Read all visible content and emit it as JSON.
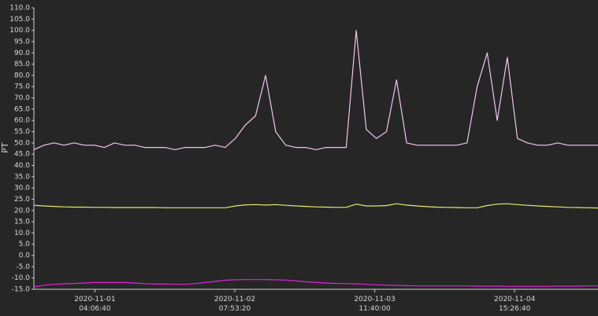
{
  "chart_data": {
    "type": "line",
    "y_label": "PT",
    "x": [
      "2020-10-31T16:00:00",
      "2020-10-31T18:00:00",
      "2020-10-31T20:00:00",
      "2020-10-31T22:00:00",
      "2020-11-01T00:00:00",
      "2020-11-01T02:00:00",
      "2020-11-01T04:00:00",
      "2020-11-01T06:00:00",
      "2020-11-01T08:00:00",
      "2020-11-01T10:00:00",
      "2020-11-01T12:00:00",
      "2020-11-01T14:00:00",
      "2020-11-01T16:00:00",
      "2020-11-01T18:00:00",
      "2020-11-01T20:00:00",
      "2020-11-01T22:00:00",
      "2020-11-02T00:00:00",
      "2020-11-02T02:00:00",
      "2020-11-02T04:00:00",
      "2020-11-02T06:00:00",
      "2020-11-02T08:00:00",
      "2020-11-02T10:00:00",
      "2020-11-02T12:00:00",
      "2020-11-02T14:00:00",
      "2020-11-02T16:00:00",
      "2020-11-02T18:00:00",
      "2020-11-02T20:00:00",
      "2020-11-02T22:00:00",
      "2020-11-03T00:00:00",
      "2020-11-03T02:00:00",
      "2020-11-03T04:00:00",
      "2020-11-03T06:00:00",
      "2020-11-03T08:00:00",
      "2020-11-03T10:00:00",
      "2020-11-03T12:00:00",
      "2020-11-03T14:00:00",
      "2020-11-03T16:00:00",
      "2020-11-03T18:00:00",
      "2020-11-03T20:00:00",
      "2020-11-03T22:00:00",
      "2020-11-04T00:00:00",
      "2020-11-04T02:00:00",
      "2020-11-04T04:00:00",
      "2020-11-04T06:00:00",
      "2020-11-04T08:00:00",
      "2020-11-04T10:00:00",
      "2020-11-04T12:00:00",
      "2020-11-04T14:00:00",
      "2020-11-04T16:00:00",
      "2020-11-04T18:00:00",
      "2020-11-04T20:00:00",
      "2020-11-04T22:00:00",
      "2020-11-05T00:00:00",
      "2020-11-05T02:00:00",
      "2020-11-05T04:00:00",
      "2020-11-05T06:00:00",
      "2020-11-05T08:00:00"
    ],
    "series": [
      {
        "color": "#f2c4ee",
        "values": [
          47,
          49,
          50,
          49,
          50,
          49,
          49,
          48,
          50,
          49,
          49,
          48,
          48,
          48,
          47,
          48,
          48,
          48,
          49,
          48,
          52,
          58,
          62,
          80,
          55,
          49,
          48,
          48,
          47,
          48,
          48,
          48,
          100,
          56,
          52,
          55,
          78,
          50,
          49,
          49,
          49,
          49,
          49,
          50,
          75,
          90,
          60,
          88,
          52,
          50,
          49,
          49,
          50,
          49,
          49,
          49,
          49
        ]
      },
      {
        "color": "#e2ea6c",
        "values": [
          22.3,
          22,
          21.8,
          21.6,
          21.5,
          21.5,
          21.4,
          21.4,
          21.3,
          21.3,
          21.3,
          21.3,
          21.3,
          21.2,
          21.2,
          21.2,
          21.2,
          21.2,
          21.2,
          21.2,
          22,
          22.5,
          22.6,
          22.4,
          22.6,
          22.3,
          22,
          21.8,
          21.6,
          21.5,
          21.4,
          21.4,
          22.8,
          22,
          22,
          22.2,
          23,
          22.4,
          22,
          21.7,
          21.5,
          21.4,
          21.3,
          21.2,
          21.2,
          22.2,
          22.8,
          23,
          22.6,
          22.3,
          22,
          21.8,
          21.6,
          21.4,
          21.3,
          21.2,
          21.1
        ]
      },
      {
        "color": "#e025d8",
        "values": [
          -14,
          -13.2,
          -12.8,
          -12.6,
          -12.4,
          -12.2,
          -12,
          -12,
          -12,
          -12,
          -12.2,
          -12.5,
          -12.7,
          -12.7,
          -12.8,
          -12.8,
          -12.5,
          -12,
          -11.5,
          -11,
          -10.8,
          -10.7,
          -10.7,
          -10.7,
          -10.8,
          -10.9,
          -11.3,
          -11.7,
          -12,
          -12.2,
          -12.4,
          -12.5,
          -12.6,
          -12.8,
          -13,
          -13.2,
          -13.3,
          -13.4,
          -13.5,
          -13.5,
          -13.5,
          -13.5,
          -13.5,
          -13.5,
          -13.6,
          -13.6,
          -13.6,
          -13.7,
          -13.7,
          -13.7,
          -13.7,
          -13.7,
          -13.6,
          -13.6,
          -13.6,
          -13.5,
          -13.5
        ]
      }
    ],
    "xlim": [
      "2020-10-31T16:00:00",
      "2020-11-05T08:00:00"
    ],
    "xticks": [
      {
        "value": "2020-11-01T04:06:40",
        "label": "2020-11-01 04:06:40"
      },
      {
        "value": "2020-11-02T07:53:20",
        "label": "2020-11-02 07:53:20"
      },
      {
        "value": "2020-11-03T11:40:00",
        "label": "2020-11-03 11:40:00"
      },
      {
        "value": "2020-11-04T15:26:40",
        "label": "2020-11-04 15:26:40"
      }
    ],
    "ylim": [
      -15,
      110
    ],
    "yticks": [
      {
        "value": -15,
        "label": "-15.0"
      },
      {
        "value": -10,
        "label": "-10.0"
      },
      {
        "value": -5,
        "label": "-5.0"
      },
      {
        "value": 0,
        "label": "0.0"
      },
      {
        "value": 5,
        "label": "5.0"
      },
      {
        "value": 10,
        "label": "10.0"
      },
      {
        "value": 15,
        "label": "15.0"
      },
      {
        "value": 20,
        "label": "20.0"
      },
      {
        "value": 25,
        "label": "25.0"
      },
      {
        "value": 30,
        "label": "30.0"
      },
      {
        "value": 35,
        "label": "35.0"
      },
      {
        "value": 40,
        "label": "40.0"
      },
      {
        "value": 45,
        "label": "45.0"
      },
      {
        "value": 50,
        "label": "50.0"
      },
      {
        "value": 55,
        "label": "55.0"
      },
      {
        "value": 60,
        "label": "60.0"
      },
      {
        "value": 65,
        "label": "65.0"
      },
      {
        "value": 70,
        "label": "70.0"
      },
      {
        "value": 75,
        "label": "75.0"
      },
      {
        "value": 80,
        "label": "80.0"
      },
      {
        "value": 85,
        "label": "85.0"
      },
      {
        "value": 90,
        "label": "90.0"
      },
      {
        "value": 95,
        "label": "95.0"
      },
      {
        "value": 100,
        "label": "100.0"
      },
      {
        "value": 105,
        "label": "105.0"
      },
      {
        "value": 110,
        "label": "110.0"
      }
    ],
    "grid": false
  }
}
